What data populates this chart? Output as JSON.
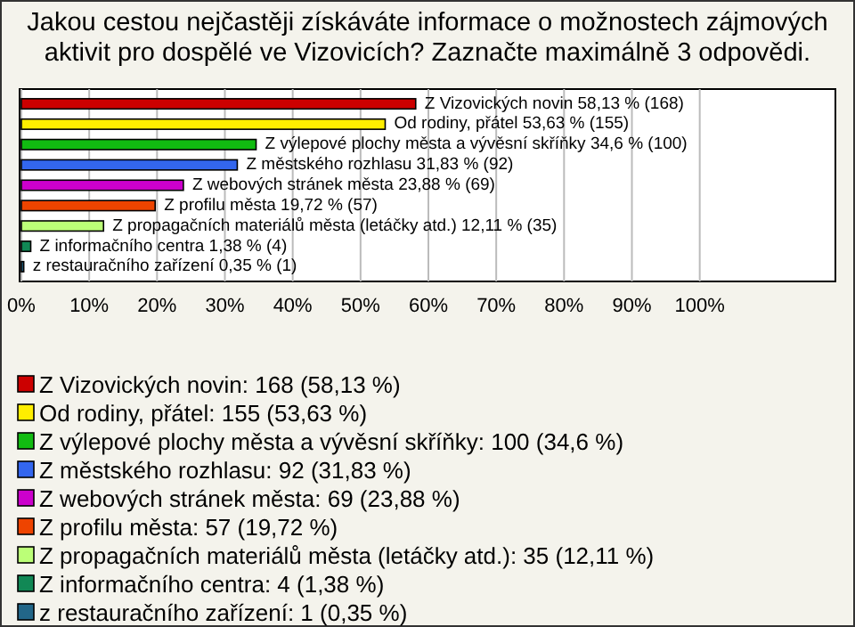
{
  "chart_data": {
    "type": "bar",
    "orientation": "horizontal",
    "stacked": true,
    "title": "Jakou cestou nejčastěji získáváte informace o možnostech zájmových aktivit pro dospělé ve Vizovicích? Zaznačte maximálně 3 odpovědi.",
    "categories": [
      null,
      null,
      null,
      null,
      null,
      null,
      null,
      null,
      null
    ],
    "series": [
      {
        "name": "Z Vizovických novin: 168 (58,13 %)",
        "color": "#cc0000",
        "values": [
          58.13,
          null,
          null,
          null,
          null,
          null,
          null,
          null,
          null
        ],
        "value_labels": [
          "Z Vizovických novin 58,13 % (168)",
          null,
          null,
          null,
          null,
          null,
          null,
          null,
          null
        ]
      },
      {
        "name": "Od rodiny, přátel: 155 (53,63 %)",
        "color": "#ffee00",
        "values": [
          null,
          53.63,
          null,
          null,
          null,
          null,
          null,
          null,
          null
        ],
        "value_labels": [
          null,
          "Od rodiny, přátel 53,63 % (155)",
          null,
          null,
          null,
          null,
          null,
          null,
          null
        ]
      },
      {
        "name": "Z výlepové plochy města a vývěsní skříňky: 100 (34,6 %)",
        "color": "#11bb11",
        "values": [
          null,
          null,
          34.6,
          null,
          null,
          null,
          null,
          null,
          null
        ],
        "value_labels": [
          null,
          null,
          "Z výlepové plochy města a vývěsní skříňky 34,6 % (100)",
          null,
          null,
          null,
          null,
          null,
          null
        ]
      },
      {
        "name": "Z městského rozhlasu: 92 (31,83 %)",
        "color": "#3366ee",
        "values": [
          null,
          null,
          null,
          31.83,
          null,
          null,
          null,
          null,
          null
        ],
        "value_labels": [
          null,
          null,
          null,
          "Z městského rozhlasu 31,83 % (92)",
          null,
          null,
          null,
          null,
          null
        ]
      },
      {
        "name": "Z webových stránek města: 69 (23,88 %)",
        "color": "#cc00cc",
        "values": [
          null,
          null,
          null,
          null,
          23.88,
          null,
          null,
          null,
          null
        ],
        "value_labels": [
          null,
          null,
          null,
          null,
          "Z webových stránek města 23,88 % (69)",
          null,
          null,
          null,
          null
        ]
      },
      {
        "name": "Z profilu města: 57 (19,72 %)",
        "color": "#ee4400",
        "values": [
          null,
          null,
          null,
          null,
          null,
          19.72,
          null,
          null,
          null
        ],
        "value_labels": [
          null,
          null,
          null,
          null,
          null,
          "Z profilu města 19,72 % (57)",
          null,
          null,
          null
        ]
      },
      {
        "name": "Z propagačních materiálů města (letáčky atd.): 35 (12,11 %)",
        "color": "#bbff77",
        "values": [
          null,
          null,
          null,
          null,
          null,
          null,
          12.11,
          null,
          null
        ],
        "value_labels": [
          null,
          null,
          null,
          null,
          null,
          null,
          "Z propagačních materiálů města (letáčky atd.) 12,11 % (35)",
          null,
          null
        ]
      },
      {
        "name": "Z informačního centra: 4 (1,38 %)",
        "color": "#118855",
        "values": [
          null,
          null,
          null,
          null,
          null,
          null,
          null,
          1.38,
          null
        ],
        "value_labels": [
          null,
          null,
          null,
          null,
          null,
          null,
          null,
          "Z informačního centra 1,38 % (4)",
          null
        ]
      },
      {
        "name": "z restauračního zařízení: 1 (0,35 %)",
        "color": "#226688",
        "values": [
          null,
          null,
          null,
          null,
          null,
          null,
          null,
          null,
          0.35
        ],
        "value_labels": [
          null,
          null,
          null,
          null,
          null,
          null,
          null,
          null,
          "z restauračního zařízení 0,35 % (1)"
        ]
      }
    ],
    "xlim": [
      0,
      120
    ],
    "xticks": [
      {
        "value": 0,
        "label": "0%"
      },
      {
        "value": 10,
        "label": "10%"
      },
      {
        "value": 20,
        "label": "20%"
      },
      {
        "value": 30,
        "label": "30%"
      },
      {
        "value": 40,
        "label": "40%"
      },
      {
        "value": 50,
        "label": "50%"
      },
      {
        "value": 60,
        "label": "60%"
      },
      {
        "value": 70,
        "label": "70%"
      },
      {
        "value": 80,
        "label": "80%"
      },
      {
        "value": 90,
        "label": "90%"
      },
      {
        "value": 100,
        "label": "100%"
      }
    ],
    "grid": "x",
    "legend": "bottom"
  }
}
